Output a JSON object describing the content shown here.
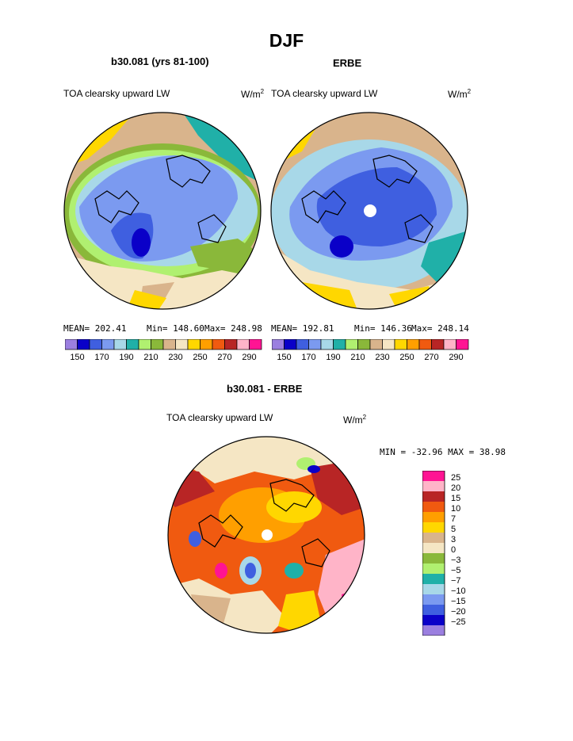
{
  "page_title": "DJF",
  "panels": {
    "model": {
      "title": "b30.081 (yrs 81-100)",
      "variable": "TOA clearsky upward LW",
      "units_base": "W/m",
      "units_exp": "2",
      "mean_text": "MEAN= 202.41",
      "min_text": "Min= 148.60",
      "max_text": "Max= 248.98"
    },
    "obs": {
      "title": "ERBE",
      "variable": "TOA clearsky upward LW",
      "units_base": "W/m",
      "units_exp": "2",
      "mean_text": "MEAN= 192.81",
      "min_text": "Min= 146.36",
      "max_text": "Max= 248.14"
    },
    "diff": {
      "title": "b30.081 - ERBE",
      "variable": "TOA clearsky upward LW",
      "units_base": "W/m",
      "units_exp": "2",
      "minmax_text": "MIN = -32.96 MAX =  38.98"
    }
  },
  "colors": {
    "abs_scale": [
      "#9b7fe0",
      "#0a00c8",
      "#3f5fe0",
      "#7b9af0",
      "#a8d8e8",
      "#20b0a8",
      "#b0f070",
      "#8ab83a",
      "#d9b48c",
      "#f5e6c4",
      "#ffd700",
      "#ff9f00",
      "#f05a10",
      "#b82525",
      "#ffb4c8",
      "#ff1493"
    ],
    "diff_scale": [
      "#9b7fe0",
      "#0a00c8",
      "#3f5fe0",
      "#7b9af0",
      "#a8d8e8",
      "#20b0a8",
      "#b0f070",
      "#8ab83a",
      "#f5e6c4",
      "#d9b48c",
      "#ffd700",
      "#ff9f00",
      "#f05a10",
      "#b82525",
      "#ffb4c8",
      "#ff1493"
    ]
  },
  "chart_data": [
    {
      "type": "heatmap",
      "projection": "north polar stereographic",
      "title": "b30.081 (yrs 81-100)",
      "variable": "TOA clearsky upward LW",
      "units": "W/m2",
      "mean": 202.41,
      "min": 148.6,
      "max": 248.98,
      "colorbar_levels": [
        150,
        160,
        170,
        180,
        190,
        200,
        210,
        220,
        230,
        240,
        250,
        260,
        270,
        280,
        290
      ],
      "colorbar_tick_labels": [
        "150",
        "170",
        "190",
        "210",
        "230",
        "250",
        "270",
        "290"
      ]
    },
    {
      "type": "heatmap",
      "projection": "north polar stereographic",
      "title": "ERBE",
      "variable": "TOA clearsky upward LW",
      "units": "W/m2",
      "mean": 192.81,
      "min": 146.36,
      "max": 248.14,
      "colorbar_levels": [
        150,
        160,
        170,
        180,
        190,
        200,
        210,
        220,
        230,
        240,
        250,
        260,
        270,
        280,
        290
      ],
      "colorbar_tick_labels": [
        "150",
        "170",
        "190",
        "210",
        "230",
        "250",
        "270",
        "290"
      ]
    },
    {
      "type": "heatmap",
      "projection": "north polar stereographic",
      "title": "b30.081 - ERBE",
      "variable": "TOA clearsky upward LW",
      "units": "W/m2",
      "min": -32.96,
      "max": 38.98,
      "colorbar_levels": [
        -25,
        -20,
        -15,
        -10,
        -7,
        -5,
        -3,
        0,
        3,
        5,
        7,
        10,
        15,
        20,
        25
      ],
      "colorbar_tick_labels": [
        "25",
        "20",
        "15",
        "10",
        "7",
        "5",
        "3",
        "0",
        "−3",
        "−5",
        "−7",
        "−10",
        "−15",
        "−20",
        "−25"
      ]
    }
  ]
}
